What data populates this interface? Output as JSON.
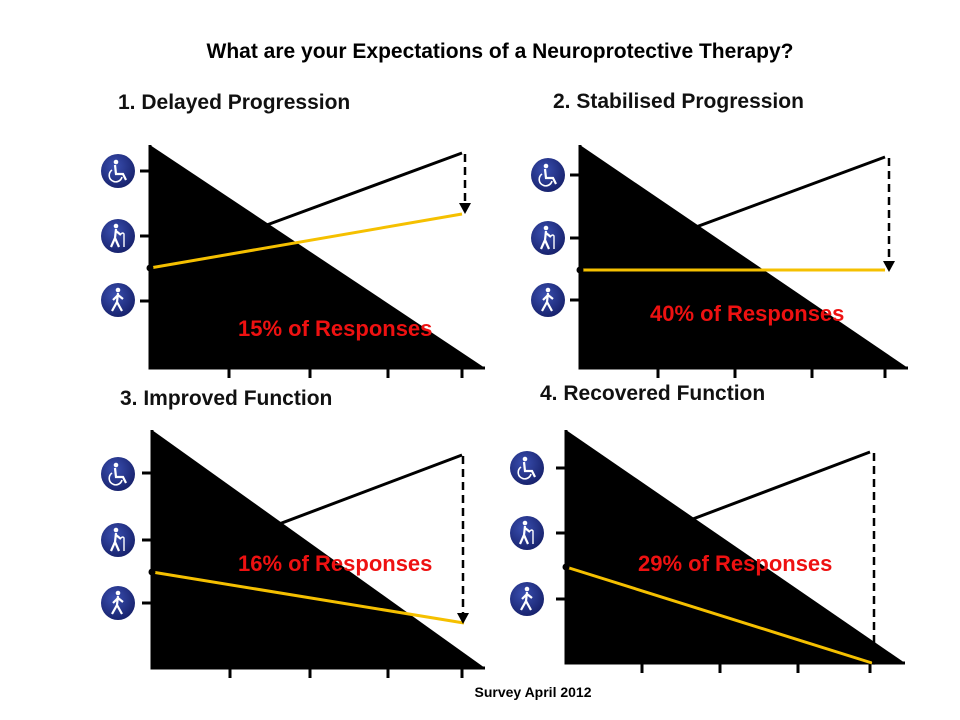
{
  "title": "What are your Expectations of a Neuroprotective Therapy?",
  "footer": "Survey April 2012",
  "colors": {
    "baseline": "#000000",
    "therapy": "#f5c000",
    "response_text": "#ee1111",
    "icon": "#1f2f86"
  },
  "panels": [
    {
      "title": "1. Delayed Progression",
      "response": "15% of Responses"
    },
    {
      "title": "2. Stabilised Progression",
      "response": "40% of Responses"
    },
    {
      "title": "3. Improved Function",
      "response": "16% of Responses"
    },
    {
      "title": "4. Recovered Function",
      "response": "29% of Responses"
    }
  ],
  "icons": [
    "wheelchair-icon",
    "walking-cane-icon",
    "walking-person-icon"
  ]
}
